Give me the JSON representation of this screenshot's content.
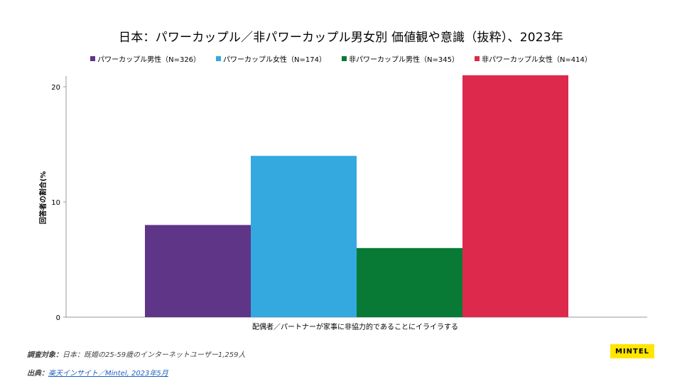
{
  "chart_data": {
    "type": "bar",
    "title": "日本：パワーカップル／非パワーカップル男女別 価値観や意識（抜粋）、2023年",
    "ylabel": "回答者の割合(%",
    "xlabel": "",
    "categories": [
      "配偶者／パートナーが家事に非協力的であることにイライラする"
    ],
    "ylim": [
      0,
      21
    ],
    "yticks": [
      0,
      10,
      20
    ],
    "grid": false,
    "legend_position": "top",
    "series": [
      {
        "name": "パワーカップル男性（N=326）",
        "values": [
          8
        ],
        "color": "#5e3587"
      },
      {
        "name": "パワーカップル女性（N=174）",
        "values": [
          14
        ],
        "color": "#33a9df"
      },
      {
        "name": "非パワーカップル男性（N=345）",
        "values": [
          6
        ],
        "color": "#097a35"
      },
      {
        "name": "非パワーカップル女性（N=414）",
        "values": [
          21
        ],
        "color": "#dd294b"
      }
    ]
  },
  "footnotes": {
    "survey_key": "調査対象：",
    "survey_text": "日本：既婚の25-59歳のインターネットユーザー1,259人",
    "source_key": "出典：",
    "source_text": "楽天インサイト／Mintel, 2023年5月"
  },
  "brand": {
    "logo_text": "MINTEL",
    "logo_color": "#ffe600"
  }
}
